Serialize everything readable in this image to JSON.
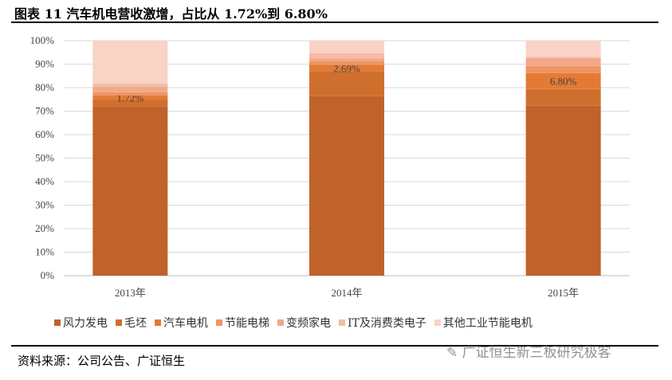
{
  "title": "图表 11  汽车机电营收激增，占比从 1.72%到 6.80%",
  "source": "资料来源：公司公告、广证恒生",
  "watermark": "广证恒生新三板研究极客",
  "chart_data": {
    "type": "bar",
    "stacked": true,
    "categories": [
      "2013年",
      "2014年",
      "2015年"
    ],
    "ylim": [
      0,
      100
    ],
    "yticks": [
      "0%",
      "10%",
      "20%",
      "30%",
      "40%",
      "50%",
      "60%",
      "70%",
      "80%",
      "90%",
      "100%"
    ],
    "grid": true,
    "legend_position": "bottom",
    "series": [
      {
        "name": "风力发电",
        "color": "#C0622A",
        "values": [
          71.9,
          76.3,
          72.3
        ]
      },
      {
        "name": "毛坯",
        "color": "#CF6F2E",
        "values": [
          3.0,
          10.7,
          7.1
        ]
      },
      {
        "name": "汽车电机",
        "color": "#E47A34",
        "values": [
          1.72,
          2.69,
          6.8
        ]
      },
      {
        "name": "节能电梯",
        "color": "#EE9563",
        "values": [
          1.4,
          1.6,
          3.0
        ]
      },
      {
        "name": "变频家电",
        "color": "#F2A88A",
        "values": [
          2.3,
          1.2,
          3.4
        ]
      },
      {
        "name": "IT及消费类电子",
        "color": "#F5BBA6",
        "values": [
          1.4,
          2.2,
          0.5
        ]
      },
      {
        "name": "其他工业节能电机",
        "color": "#F8D3C6",
        "values": [
          18.28,
          5.31,
          6.9
        ]
      }
    ],
    "data_labels": {
      "series": "汽车电机",
      "labels": [
        "1.72%",
        "2.69%",
        "6.80%"
      ]
    }
  }
}
